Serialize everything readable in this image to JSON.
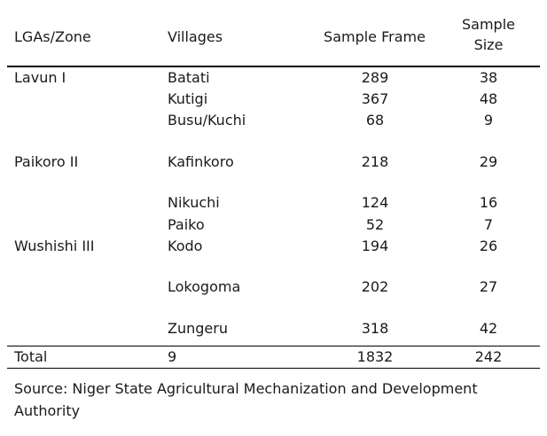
{
  "table": {
    "headers": {
      "zone": "LGAs/Zone",
      "villages": "Villages",
      "frame": "Sample Frame",
      "size_line1": "Sample",
      "size_line2": "Size"
    },
    "rows": [
      {
        "zone": "Lavun I",
        "village": "Batati",
        "frame": "289",
        "size": "38"
      },
      {
        "zone": "",
        "village": "Kutigi",
        "frame": "367",
        "size": "48"
      },
      {
        "zone": "",
        "village": "Busu/Kuchi",
        "frame": "68",
        "size": "9"
      },
      {
        "zone": "Paikoro II",
        "village": "Kafinkoro",
        "frame": "218",
        "size": "29"
      },
      {
        "zone": "",
        "village": "Nikuchi",
        "frame": "124",
        "size": "16"
      },
      {
        "zone": "",
        "village": "Paiko",
        "frame": "52",
        "size": "7"
      },
      {
        "zone": "Wushishi III",
        "village": "Kodo",
        "frame": "194",
        "size": "26"
      },
      {
        "zone": "",
        "village": "Lokogoma",
        "frame": "202",
        "size": "27"
      },
      {
        "zone": "",
        "village": "Zungeru",
        "frame": "318",
        "size": "42"
      }
    ],
    "total": {
      "label": "Total",
      "villages": "9",
      "frame": "1832",
      "size": "242"
    }
  },
  "source_note": "Source: Niger State Agricultural Mechanization and Development Authority"
}
